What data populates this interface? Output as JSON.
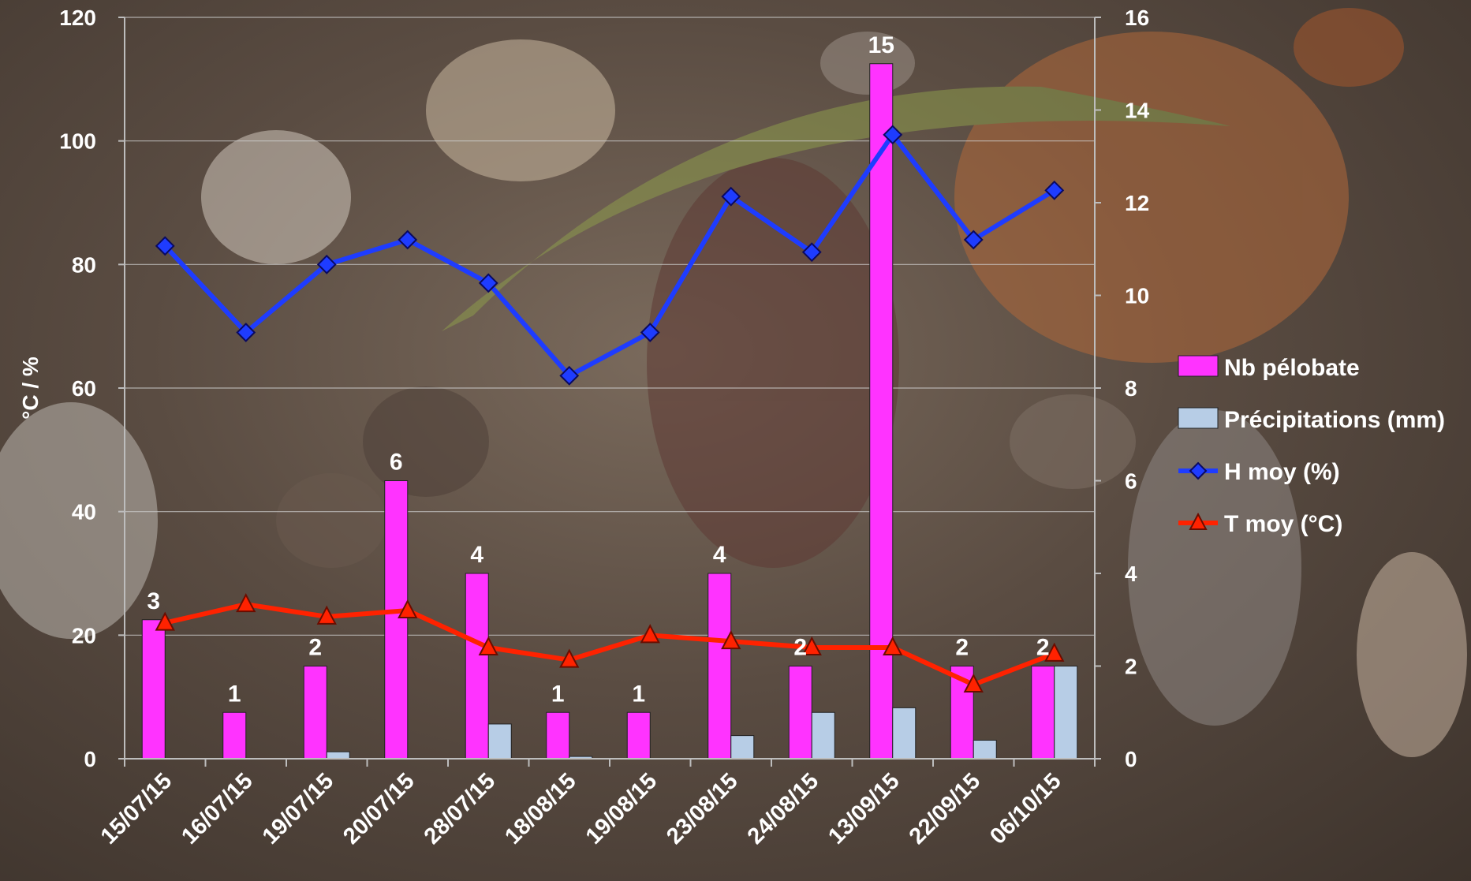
{
  "chart_data": {
    "type": "bar",
    "background": "photo of a spadefoot toad (pélobate) on gravel",
    "categories": [
      "15/07/15",
      "16/07/15",
      "19/07/15",
      "20/07/15",
      "28/07/15",
      "18/08/15",
      "19/08/15",
      "23/08/15",
      "24/08/15",
      "13/09/15",
      "22/09/15",
      "06/10/15"
    ],
    "series": [
      {
        "name": "Nb pélobate",
        "type": "bar",
        "axis": "right",
        "color": "#ff33ff",
        "values": [
          3,
          1,
          2,
          6,
          4,
          1,
          1,
          4,
          2,
          15,
          2,
          2
        ],
        "labels": [
          "3",
          "1",
          "2",
          "6",
          "4",
          "1",
          "1",
          "4",
          "2",
          "15",
          "2",
          "2"
        ]
      },
      {
        "name": "Précipitations (mm)",
        "type": "bar",
        "axis": "right",
        "color": "#b7cde6",
        "values": [
          0,
          0,
          0.15,
          0,
          0.75,
          0.05,
          0,
          0.5,
          1.0,
          1.1,
          0.4,
          2.0
        ]
      },
      {
        "name": "H moy (%)",
        "type": "line",
        "axis": "left",
        "color": "#1e3cff",
        "marker": "diamond",
        "values": [
          83,
          69,
          80,
          84,
          77,
          62,
          69,
          91,
          82,
          101,
          84,
          92
        ]
      },
      {
        "name": "T moy (°C)",
        "type": "line",
        "axis": "left",
        "color": "#ff2200",
        "marker": "triangle",
        "values": [
          22,
          25,
          23,
          24,
          18,
          16,
          20,
          19,
          18,
          18,
          12,
          17
        ]
      }
    ],
    "ylabel": "°C / %",
    "ylim": [
      0,
      120
    ],
    "yticks": [
      "0",
      "20",
      "40",
      "60",
      "80",
      "100",
      "120"
    ],
    "y2lim": [
      0,
      16
    ],
    "y2ticks": [
      "0",
      "2",
      "4",
      "6",
      "8",
      "10",
      "12",
      "14",
      "16"
    ],
    "grid": true,
    "legend_position": "right"
  }
}
